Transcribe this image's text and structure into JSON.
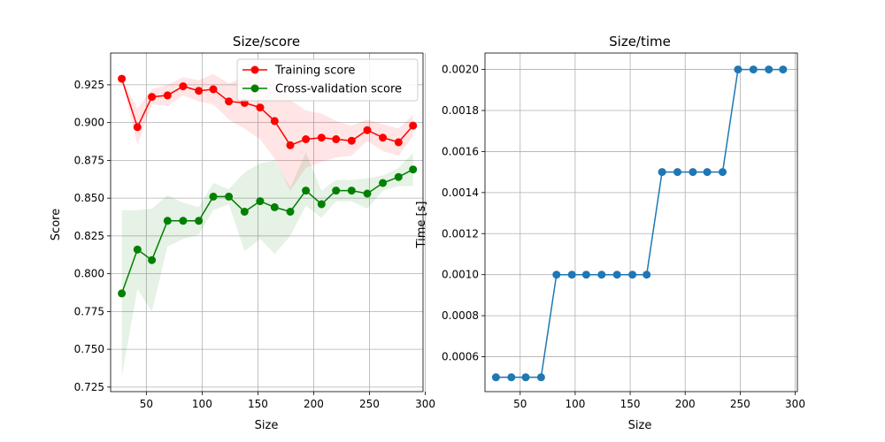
{
  "chart_data": [
    {
      "type": "line",
      "title": "Size/score",
      "xlabel": "Size",
      "ylabel": "Score",
      "xlim": [
        18,
        298
      ],
      "ylim": [
        0.722,
        0.946
      ],
      "xticks": [
        50,
        100,
        150,
        200,
        250,
        300
      ],
      "yticks": [
        0.725,
        0.75,
        0.775,
        0.8,
        0.825,
        0.85,
        0.875,
        0.9,
        0.925
      ],
      "ytick_labels": [
        "0.725",
        "0.750",
        "0.775",
        "0.800",
        "0.825",
        "0.850",
        "0.875",
        "0.900",
        "0.925"
      ],
      "grid": true,
      "legend": "top-right",
      "x": [
        28,
        42,
        55,
        69,
        83,
        97,
        110,
        124,
        138,
        152,
        165,
        179,
        193,
        207,
        220,
        234,
        248,
        262,
        276,
        289
      ],
      "series": [
        {
          "name": "Training score",
          "color": "#ff0000",
          "values": [
            0.929,
            0.897,
            0.917,
            0.918,
            0.924,
            0.921,
            0.922,
            0.914,
            0.913,
            0.91,
            0.901,
            0.885,
            0.889,
            0.89,
            0.889,
            0.888,
            0.895,
            0.89,
            0.887,
            0.898
          ],
          "band_lower": [
            0.929,
            0.885,
            0.912,
            0.911,
            0.918,
            0.914,
            0.912,
            0.902,
            0.896,
            0.889,
            0.876,
            0.855,
            0.87,
            0.874,
            0.877,
            0.878,
            0.888,
            0.881,
            0.878,
            0.891
          ],
          "band_upper": [
            0.929,
            0.909,
            0.922,
            0.925,
            0.93,
            0.928,
            0.932,
            0.926,
            0.93,
            0.931,
            0.926,
            0.915,
            0.908,
            0.906,
            0.901,
            0.898,
            0.902,
            0.899,
            0.896,
            0.905
          ]
        },
        {
          "name": "Cross-validation score",
          "color": "#008000",
          "values": [
            0.787,
            0.816,
            0.809,
            0.835,
            0.835,
            0.835,
            0.851,
            0.851,
            0.841,
            0.848,
            0.844,
            0.841,
            0.855,
            0.846,
            0.855,
            0.855,
            0.853,
            0.86,
            0.864,
            0.869
          ],
          "band_lower": [
            0.732,
            0.79,
            0.775,
            0.818,
            0.823,
            0.826,
            0.842,
            0.846,
            0.815,
            0.823,
            0.813,
            0.825,
            0.845,
            0.837,
            0.848,
            0.848,
            0.843,
            0.855,
            0.858,
            0.858
          ],
          "band_upper": [
            0.842,
            0.842,
            0.843,
            0.852,
            0.847,
            0.844,
            0.86,
            0.856,
            0.867,
            0.873,
            0.875,
            0.857,
            0.88,
            0.855,
            0.862,
            0.862,
            0.863,
            0.865,
            0.87,
            0.88
          ]
        }
      ]
    },
    {
      "type": "line",
      "title": "Size/time",
      "xlabel": "Size",
      "ylabel": "Time [s]",
      "xlim": [
        18,
        302
      ],
      "ylim": [
        0.00043,
        0.00208
      ],
      "xticks": [
        50,
        100,
        150,
        200,
        250,
        300
      ],
      "yticks": [
        0.0006,
        0.0008,
        0.001,
        0.0012,
        0.0014,
        0.0016,
        0.0018,
        0.002
      ],
      "ytick_labels": [
        "0.0006",
        "0.0008",
        "0.0010",
        "0.0012",
        "0.0014",
        "0.0016",
        "0.0018",
        "0.0020"
      ],
      "grid": true,
      "x": [
        28,
        42,
        55,
        69,
        83,
        97,
        110,
        124,
        138,
        152,
        165,
        179,
        193,
        207,
        220,
        234,
        248,
        262,
        276,
        289
      ],
      "series": [
        {
          "color": "#1f77b4",
          "values": [
            0.0005,
            0.0005,
            0.0005,
            0.0005,
            0.001,
            0.001,
            0.001,
            0.001,
            0.001,
            0.001,
            0.001,
            0.0015,
            0.0015,
            0.0015,
            0.0015,
            0.0015,
            0.002,
            0.002,
            0.002,
            0.002
          ]
        }
      ]
    }
  ]
}
